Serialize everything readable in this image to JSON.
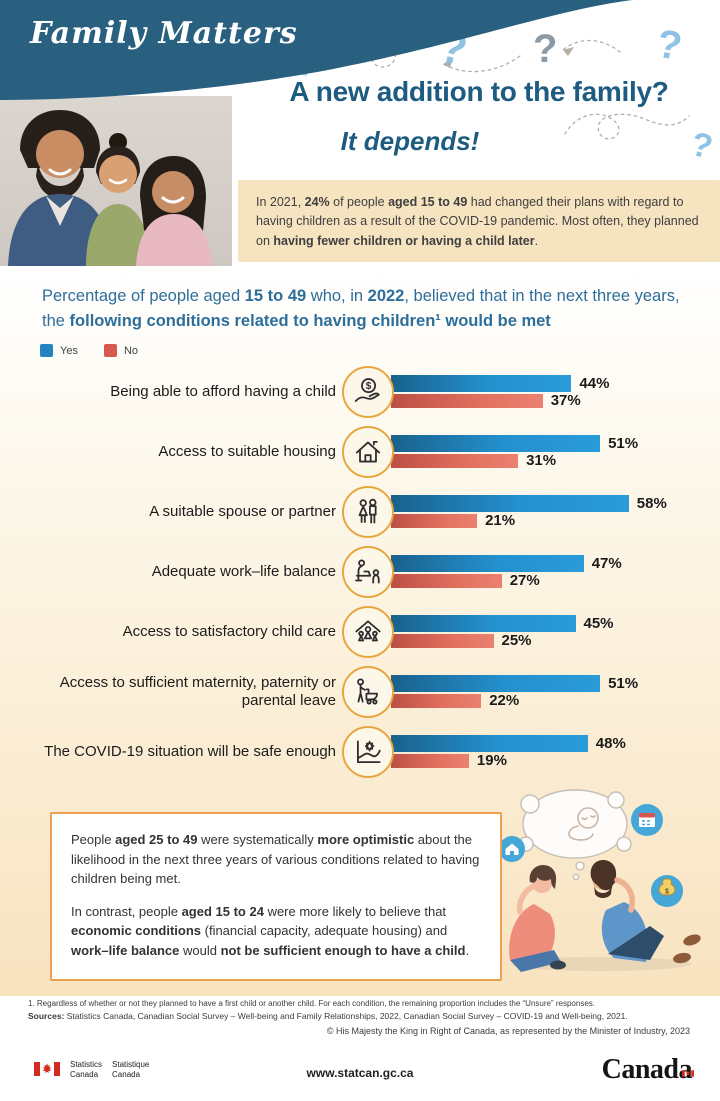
{
  "badge": {
    "title": "Family Matters"
  },
  "header": {
    "title": "A new addition to the family?",
    "subtitle": "It depends!"
  },
  "decor": {
    "question_mark": "?"
  },
  "callout": {
    "segments": [
      {
        "t": "In 2021, ",
        "b": false
      },
      {
        "t": "24%",
        "b": true
      },
      {
        "t": " of people ",
        "b": false
      },
      {
        "t": "aged 15 to 49",
        "b": true
      },
      {
        "t": " had changed their plans with regard to having children as a result of the COVID-19 pandemic. Most often, they planned on ",
        "b": false
      },
      {
        "t": "having fewer children or having a child later",
        "b": true
      },
      {
        "t": ".",
        "b": false
      }
    ]
  },
  "chart_data": {
    "type": "bar",
    "title_segments": [
      {
        "t": "Percentage of people aged ",
        "b": false
      },
      {
        "t": "15 to 49",
        "b": true
      },
      {
        "t": " who, in ",
        "b": false
      },
      {
        "t": "2022",
        "b": true
      },
      {
        "t": ", believed that in the next three years, the ",
        "b": false
      },
      {
        "t": "following conditions related to having children¹ would be met",
        "b": true
      }
    ],
    "legend": [
      {
        "label": "Yes",
        "color": "#2484c2"
      },
      {
        "label": "No",
        "color": "#d8584e"
      }
    ],
    "categories": [
      "Being able to afford having a child",
      "Access to suitable housing",
      "A suitable spouse or partner",
      "Adequate work–life balance",
      "Access to satisfactory child care",
      "Access to sufficient maternity, paternity or parental leave",
      "The COVID-19 situation will be safe enough"
    ],
    "series": [
      {
        "name": "Yes",
        "values": [
          44,
          51,
          58,
          47,
          45,
          51,
          48
        ]
      },
      {
        "name": "No",
        "values": [
          37,
          31,
          21,
          27,
          25,
          22,
          19
        ]
      }
    ],
    "unit": "%",
    "xlim": [
      0,
      60
    ],
    "grid": false,
    "legend_position": "top-left",
    "icons": [
      "money-hand-icon",
      "house-icon",
      "couple-icon",
      "work-life-balance-icon",
      "child-care-icon",
      "parental-leave-icon",
      "covid-chart-icon"
    ]
  },
  "findings": {
    "para1_segments": [
      {
        "t": "People ",
        "b": false
      },
      {
        "t": "aged 25 to 49",
        "b": true
      },
      {
        "t": " were systematically ",
        "b": false
      },
      {
        "t": "more optimistic",
        "b": true
      },
      {
        "t": " about the likelihood in the next three years of various conditions related to having children being met.",
        "b": false
      }
    ],
    "para2_segments": [
      {
        "t": "In contrast, people ",
        "b": false
      },
      {
        "t": "aged 15 to 24",
        "b": true
      },
      {
        "t": " were more likely to believe that ",
        "b": false
      },
      {
        "t": "economic conditions",
        "b": true
      },
      {
        "t": " (financial capacity, adequate housing) and ",
        "b": false
      },
      {
        "t": "work–life balance",
        "b": true
      },
      {
        "t": " would ",
        "b": false
      },
      {
        "t": "not be sufficient enough to have a child",
        "b": true
      },
      {
        "t": ".",
        "b": false
      }
    ]
  },
  "footnotes": {
    "note1": "1. Regardless of whether or not they planned to have a first child or another child. For each condition, the remaining proportion includes the “Unsure” responses.",
    "sources_label": "Sources:",
    "sources": " Statistics Canada, Canadian Social Survey – Well-being and Family Relationships, 2022, Canadian Social Survey – COVID-19 and Well-being, 2021.",
    "copyright": "© His Majesty the King in Right of Canada, as represented by the Minister of Industry, 2023"
  },
  "footer": {
    "agency_en_line1": "Statistics",
    "agency_en_line2": "Canada",
    "agency_fr_line1": "Statistique",
    "agency_fr_line2": "Canada",
    "url": "www.statcan.gc.ca",
    "wordmark": "Canada"
  }
}
